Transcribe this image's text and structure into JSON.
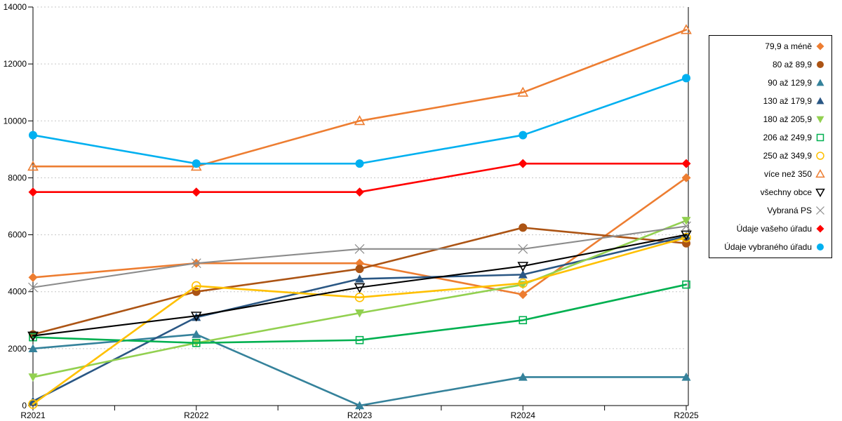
{
  "chart_data": {
    "type": "line",
    "title": "",
    "xlabel": "",
    "ylabel": "",
    "categories": [
      "R2021",
      "R2022",
      "R2023",
      "R2024",
      "R2025"
    ],
    "ylim": [
      0,
      14000
    ],
    "ytick_step": 2000,
    "grid": true,
    "legend_position": "right",
    "series": [
      {
        "name": "79,9 a méně",
        "color": "#ED7D31",
        "marker": "diamond",
        "fill": "filled",
        "values": [
          4500,
          5000,
          5000,
          3900,
          8000
        ]
      },
      {
        "name": "80 až 89,9",
        "color": "#AC5414",
        "marker": "circle",
        "fill": "filled",
        "values": [
          2500,
          4000,
          4800,
          6250,
          5700
        ]
      },
      {
        "name": "90 až 129,9",
        "color": "#35829B",
        "marker": "triangle-up",
        "fill": "filled",
        "values": [
          2000,
          2500,
          0,
          1000,
          1000
        ]
      },
      {
        "name": "130 až 179,9",
        "color": "#2A5784",
        "marker": "triangle-up",
        "fill": "filled",
        "values": [
          150,
          3100,
          4450,
          4600,
          5950
        ]
      },
      {
        "name": "180 až 205,9",
        "color": "#92D050",
        "marker": "triangle-down",
        "fill": "filled",
        "values": [
          1000,
          2200,
          3250,
          4250,
          6500
        ]
      },
      {
        "name": "206 až 249,9",
        "color": "#00B050",
        "marker": "square",
        "fill": "open",
        "values": [
          2400,
          2200,
          2300,
          3000,
          4250
        ]
      },
      {
        "name": "250 až 349,9",
        "color": "#FFC000",
        "marker": "circle",
        "fill": "open",
        "values": [
          50,
          4200,
          3800,
          4300,
          5900
        ]
      },
      {
        "name": "více než 350",
        "color": "#ED7D31",
        "marker": "triangle-up",
        "fill": "open",
        "values": [
          8400,
          8400,
          10000,
          11000,
          13200
        ]
      },
      {
        "name": "všechny obce",
        "color": "#000000",
        "marker": "triangle-down",
        "fill": "open",
        "values": [
          2450,
          3150,
          4150,
          4900,
          6000
        ]
      },
      {
        "name": "Vybraná PS",
        "color": "#8C8C8C",
        "marker": "x",
        "fill": "open",
        "values": [
          4150,
          5000,
          5500,
          5500,
          6300
        ]
      },
      {
        "name": "Údaje vašeho úřadu",
        "color": "#FF0000",
        "marker": "diamond",
        "fill": "filled",
        "values": [
          7500,
          7500,
          7500,
          8500,
          8500
        ]
      },
      {
        "name": "Údaje vybraného úřadu",
        "color": "#00B0F0",
        "marker": "circle",
        "fill": "filled",
        "values": [
          9500,
          8500,
          8500,
          9500,
          11500
        ]
      }
    ],
    "ytick_labels": [
      "0",
      "2000",
      "4000",
      "6000",
      "8000",
      "10000",
      "12000",
      "14000"
    ]
  },
  "colors": {
    "grid": "#C6C6C6",
    "axis": "#000000",
    "background": "#FFFFFF"
  }
}
